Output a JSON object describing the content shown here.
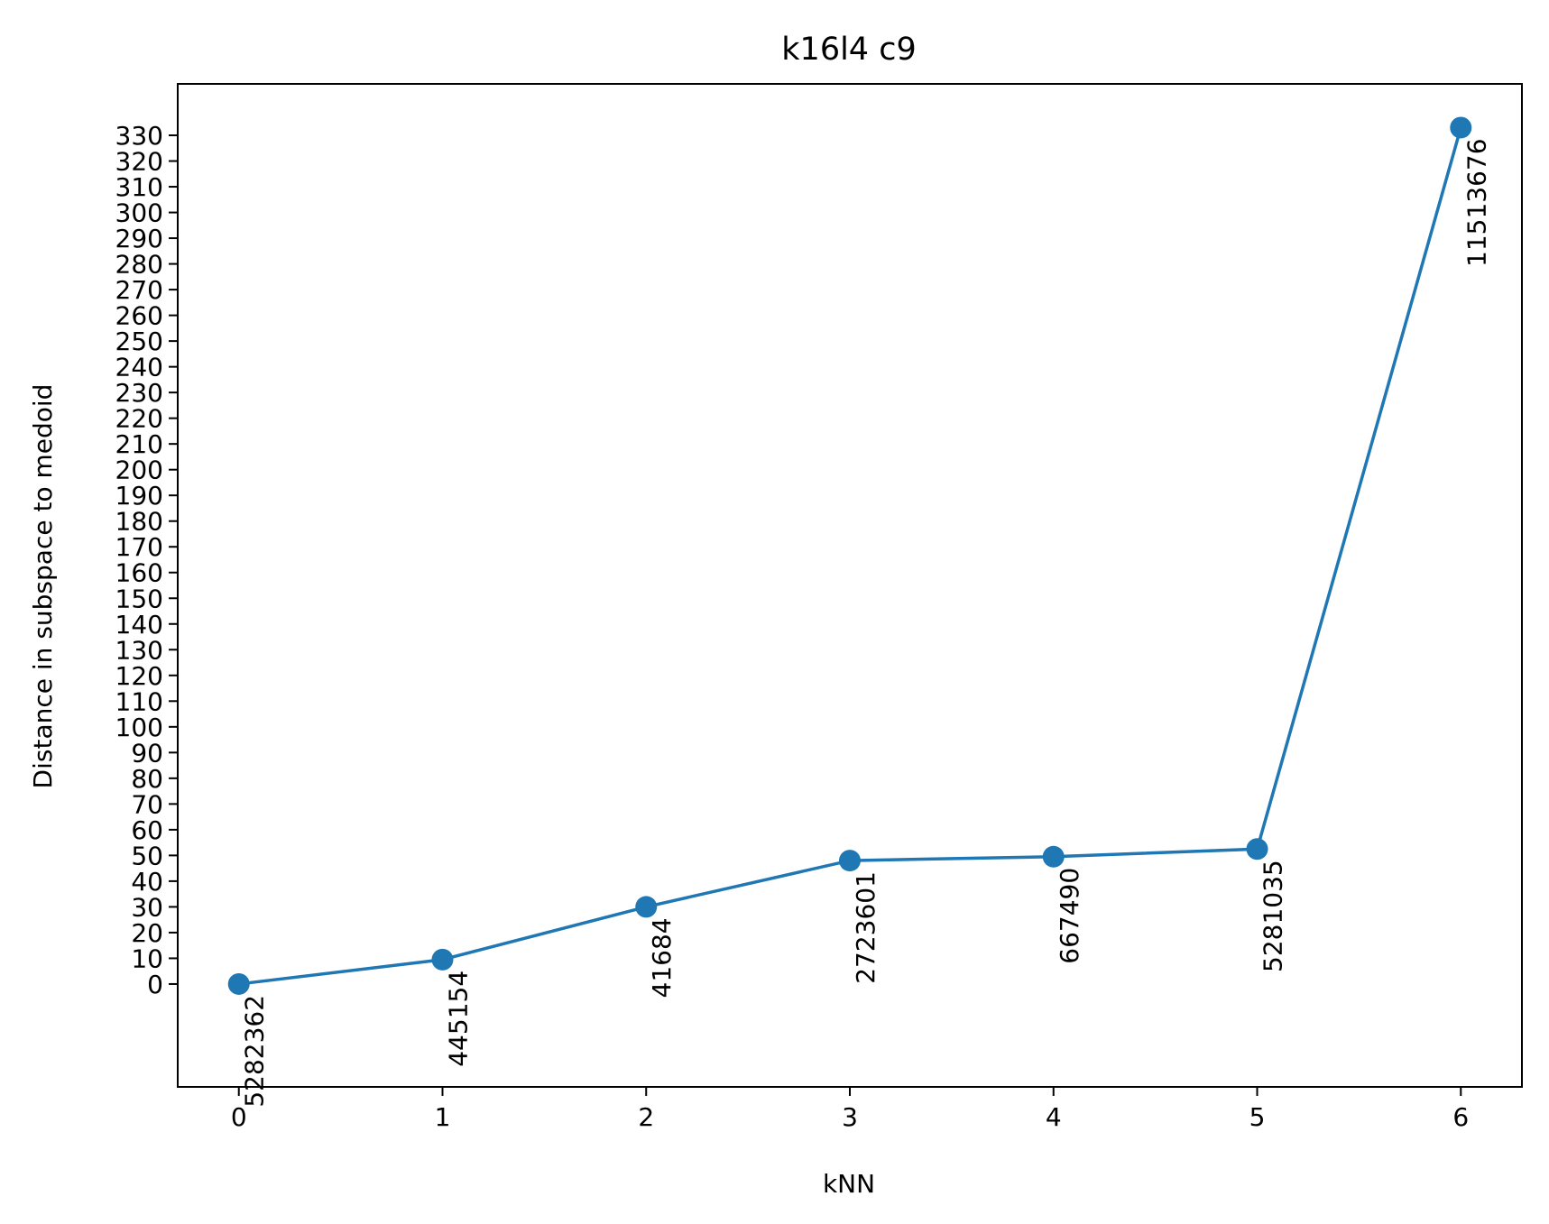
{
  "chart_data": {
    "type": "line",
    "title": "k16l4 c9",
    "xlabel": "kNN",
    "ylabel": "Distance in subspace to medoid",
    "x": [
      0,
      1,
      2,
      3,
      4,
      5,
      6
    ],
    "xticks": [
      "0",
      "1",
      "2",
      "3",
      "4",
      "5",
      "6"
    ],
    "yticks": [
      "0",
      "10",
      "20",
      "30",
      "40",
      "50",
      "60",
      "70",
      "80",
      "90",
      "100",
      "110",
      "120",
      "130",
      "140",
      "150",
      "160",
      "170",
      "180",
      "190",
      "200",
      "210",
      "220",
      "230",
      "240",
      "250",
      "260",
      "270",
      "280",
      "290",
      "300",
      "310",
      "320",
      "330"
    ],
    "xlim": [
      -0.3,
      6.3
    ],
    "ylim": [
      -40,
      350
    ],
    "series": [
      {
        "values": [
          0,
          9.5,
          30,
          48,
          49.5,
          52.5,
          333
        ],
        "labels": [
          "5282362",
          "445154",
          "41684",
          "2723601",
          "667490",
          "5281035",
          "11513676"
        ]
      }
    ],
    "colors": {
      "line": "#1f77b4"
    },
    "grid": false,
    "legend": "none"
  }
}
